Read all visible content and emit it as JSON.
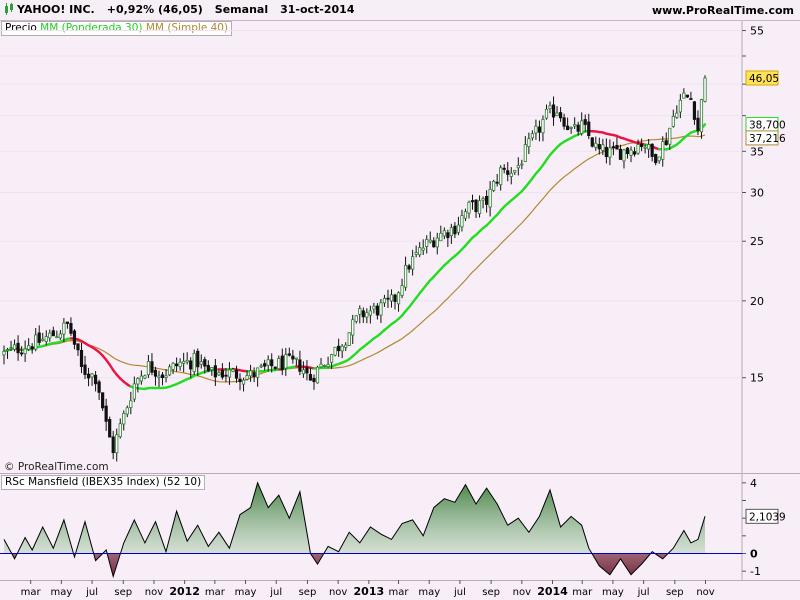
{
  "header": {
    "ticker": "YAHOO! INC.",
    "change": "+0,92% (46,05)",
    "period": "Semanal",
    "date": "31-oct-2014",
    "site": "www.ProRealTime.com"
  },
  "legend_main": {
    "price": "Precio",
    "wma": "MM (Ponderada 30)",
    "sma": "MM (Simple 40)"
  },
  "legend_rsc": {
    "label": "RSc Mansfield (IBEX35 Index) (52 10)"
  },
  "watermark": "© ProRealTime.com",
  "colors": {
    "background": "#f8eef8",
    "up_candle": "#2e7d32",
    "down_candle": "#111111",
    "wma": "#22dd22",
    "wma_below": "#ee1144",
    "sma": "#b08a30",
    "rsc_positive": "#3a7a3a",
    "rsc_negative": "#7a2a3a",
    "zero_line": "#0000cc"
  },
  "chart_data": [
    {
      "type": "candlestick",
      "title": "YAHOO! INC.",
      "scale": "log",
      "ylim": [
        10.5,
        57
      ],
      "y_ticks": [
        15,
        20,
        25,
        30,
        35,
        40,
        45,
        50,
        55
      ],
      "y_tick_labels": [
        "15",
        "20",
        "25",
        "30",
        "35",
        "",
        "",
        "",
        "55"
      ],
      "x_ticks": [
        "mar",
        "may",
        "jul",
        "sep",
        "nov",
        "2012",
        "mar",
        "may",
        "jul",
        "sep",
        "nov",
        "2013",
        "mar",
        "may",
        "jul",
        "sep",
        "nov",
        "2014",
        "mar",
        "may",
        "jul",
        "sep",
        "nov"
      ],
      "x_range": [
        "2011-01-07",
        "2014-10-31"
      ],
      "price_path": [
        [
          "2011-01-07",
          16.4
        ],
        [
          "2011-02-15",
          16.9
        ],
        [
          "2011-03-20",
          17.2
        ],
        [
          "2011-04-25",
          17.8
        ],
        [
          "2011-05-15",
          18.3
        ],
        [
          "2011-06-10",
          15.5
        ],
        [
          "2011-07-10",
          15.0
        ],
        [
          "2011-08-01",
          12.2
        ],
        [
          "2011-08-12",
          11.5
        ],
        [
          "2011-09-05",
          13.2
        ],
        [
          "2011-09-25",
          14.8
        ],
        [
          "2011-10-20",
          15.7
        ],
        [
          "2011-11-20",
          15.2
        ],
        [
          "2011-12-20",
          15.8
        ],
        [
          "2012-01-25",
          16.0
        ],
        [
          "2012-02-20",
          15.2
        ],
        [
          "2012-03-20",
          15.3
        ],
        [
          "2012-05-10",
          15.1
        ],
        [
          "2012-06-15",
          15.6
        ],
        [
          "2012-07-20",
          15.9
        ],
        [
          "2012-08-20",
          15.7
        ],
        [
          "2012-09-05",
          14.9
        ],
        [
          "2012-09-25",
          15.6
        ],
        [
          "2012-10-20",
          16.4
        ],
        [
          "2012-11-15",
          17.4
        ],
        [
          "2012-12-15",
          19.0
        ],
        [
          "2013-01-20",
          19.4
        ],
        [
          "2013-02-20",
          20.0
        ],
        [
          "2013-03-20",
          22.8
        ],
        [
          "2013-04-20",
          24.5
        ],
        [
          "2013-05-20",
          25.6
        ],
        [
          "2013-06-20",
          26.3
        ],
        [
          "2013-07-20",
          28.4
        ],
        [
          "2013-08-20",
          28.7
        ],
        [
          "2013-09-20",
          32.5
        ],
        [
          "2013-10-20",
          32.6
        ],
        [
          "2013-11-20",
          36.3
        ],
        [
          "2013-12-20",
          40.0
        ],
        [
          "2014-01-10",
          41.0
        ],
        [
          "2014-02-10",
          37.5
        ],
        [
          "2014-03-01",
          38.5
        ],
        [
          "2014-04-01",
          35.0
        ],
        [
          "2014-05-01",
          34.8
        ],
        [
          "2014-06-01",
          35.2
        ],
        [
          "2014-07-01",
          36.3
        ],
        [
          "2014-07-20",
          34.0
        ],
        [
          "2014-08-15",
          36.6
        ],
        [
          "2014-09-05",
          41.5
        ],
        [
          "2014-09-20",
          43.0
        ],
        [
          "2014-10-05",
          42.5
        ],
        [
          "2014-10-17",
          38.0
        ],
        [
          "2014-10-31",
          46.05
        ]
      ],
      "series": [
        {
          "name": "Precio",
          "last": 46.05,
          "last_label": "46,05"
        },
        {
          "name": "MM (Ponderada 30)",
          "last": 38.7,
          "last_label": "38,700"
        },
        {
          "name": "MM (Simple 40)",
          "last": 37.216,
          "last_label": "37,216"
        }
      ]
    },
    {
      "type": "area",
      "title": "RSc Mansfield (IBEX35 Index) (52 10)",
      "ylim": [
        -1.5,
        4.5
      ],
      "y_ticks": [
        -1,
        0,
        1,
        2,
        3,
        4
      ],
      "y_tick_labels": [
        "-1",
        "0",
        "",
        "2",
        "",
        "4"
      ],
      "last": 2.1039,
      "last_label": "2,1039",
      "values_path": [
        [
          "2011-01-07",
          0.8
        ],
        [
          "2011-01-28",
          -0.3
        ],
        [
          "2011-02-18",
          0.9
        ],
        [
          "2011-03-04",
          0.2
        ],
        [
          "2011-03-25",
          1.5
        ],
        [
          "2011-04-15",
          0.3
        ],
        [
          "2011-05-06",
          1.9
        ],
        [
          "2011-05-27",
          -0.2
        ],
        [
          "2011-06-17",
          1.8
        ],
        [
          "2011-07-08",
          -0.4
        ],
        [
          "2011-07-29",
          0.2
        ],
        [
          "2011-08-12",
          -1.3
        ],
        [
          "2011-09-02",
          0.6
        ],
        [
          "2011-09-23",
          1.9
        ],
        [
          "2011-10-14",
          0.6
        ],
        [
          "2011-11-04",
          1.8
        ],
        [
          "2011-11-25",
          0.1
        ],
        [
          "2011-12-16",
          2.4
        ],
        [
          "2012-01-06",
          0.7
        ],
        [
          "2012-01-27",
          1.6
        ],
        [
          "2012-02-17",
          0.4
        ],
        [
          "2012-03-09",
          1.2
        ],
        [
          "2012-03-30",
          0.3
        ],
        [
          "2012-04-20",
          2.2
        ],
        [
          "2012-05-11",
          2.6
        ],
        [
          "2012-05-25",
          4.0
        ],
        [
          "2012-06-15",
          2.6
        ],
        [
          "2012-07-06",
          3.3
        ],
        [
          "2012-07-27",
          2.0
        ],
        [
          "2012-08-17",
          3.5
        ],
        [
          "2012-09-07",
          0.0
        ],
        [
          "2012-09-21",
          -0.6
        ],
        [
          "2012-10-12",
          0.4
        ],
        [
          "2012-11-02",
          0.1
        ],
        [
          "2012-11-23",
          1.2
        ],
        [
          "2012-12-14",
          0.6
        ],
        [
          "2013-01-04",
          1.5
        ],
        [
          "2013-01-25",
          1.1
        ],
        [
          "2013-02-15",
          0.8
        ],
        [
          "2013-03-08",
          1.7
        ],
        [
          "2013-03-29",
          1.9
        ],
        [
          "2013-04-19",
          1.0
        ],
        [
          "2013-05-10",
          2.6
        ],
        [
          "2013-05-31",
          3.1
        ],
        [
          "2013-06-21",
          2.9
        ],
        [
          "2013-07-12",
          3.9
        ],
        [
          "2013-08-02",
          2.8
        ],
        [
          "2013-08-23",
          3.7
        ],
        [
          "2013-09-13",
          2.8
        ],
        [
          "2013-10-04",
          1.6
        ],
        [
          "2013-10-25",
          2.0
        ],
        [
          "2013-11-15",
          1.2
        ],
        [
          "2013-12-06",
          2.1
        ],
        [
          "2013-12-27",
          3.6
        ],
        [
          "2014-01-17",
          1.5
        ],
        [
          "2014-02-07",
          2.1
        ],
        [
          "2014-02-28",
          1.6
        ],
        [
          "2014-03-14",
          0.3
        ],
        [
          "2014-04-04",
          -0.7
        ],
        [
          "2014-04-25",
          -1.2
        ],
        [
          "2014-05-16",
          -0.3
        ],
        [
          "2014-06-06",
          -1.2
        ],
        [
          "2014-06-27",
          -0.6
        ],
        [
          "2014-07-18",
          0.1
        ],
        [
          "2014-08-08",
          -0.3
        ],
        [
          "2014-08-29",
          0.3
        ],
        [
          "2014-09-19",
          1.3
        ],
        [
          "2014-10-03",
          0.6
        ],
        [
          "2014-10-17",
          0.8
        ],
        [
          "2014-10-31",
          2.1039
        ]
      ]
    }
  ]
}
